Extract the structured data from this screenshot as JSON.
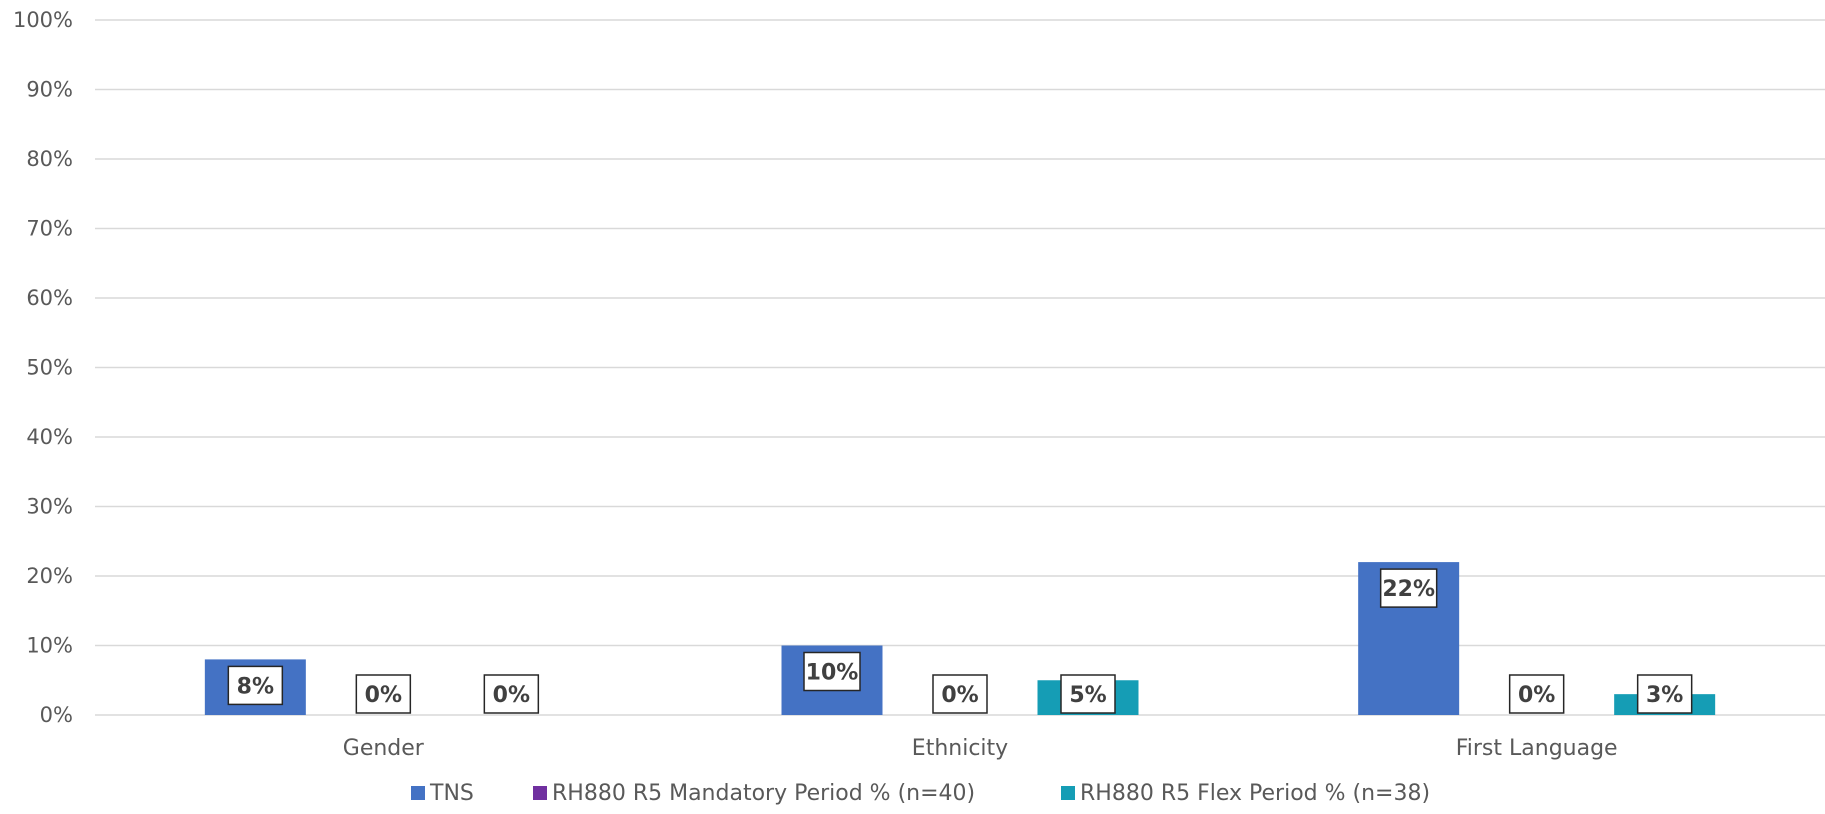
{
  "chart_data": {
    "type": "bar",
    "categories": [
      "Gender",
      "Ethnicity",
      "First Language"
    ],
    "series": [
      {
        "name": "TNS",
        "values": [
          8,
          10,
          22
        ],
        "labels": [
          "8%",
          "10%",
          "22%"
        ],
        "color": "#4472C4"
      },
      {
        "name": "RH880 R5 Mandatory Period % (n=40)",
        "values": [
          0,
          0,
          0
        ],
        "labels": [
          "0%",
          "0%",
          "0%"
        ],
        "color": "#7030A0"
      },
      {
        "name": "RH880 R5 Flex Period % (n=38)",
        "values": [
          0,
          5,
          3
        ],
        "labels": [
          "0%",
          "5%",
          "3%"
        ],
        "color": "#159DB5"
      }
    ],
    "ylim": [
      0,
      100
    ],
    "yticks": [
      0,
      10,
      20,
      30,
      40,
      50,
      60,
      70,
      80,
      90,
      100
    ],
    "ytick_labels": [
      "0%",
      "10%",
      "20%",
      "30%",
      "40%",
      "50%",
      "60%",
      "70%",
      "80%",
      "90%",
      "100%"
    ],
    "grid": true,
    "legend_position": "bottom",
    "title": "",
    "xlabel": "",
    "ylabel": ""
  }
}
